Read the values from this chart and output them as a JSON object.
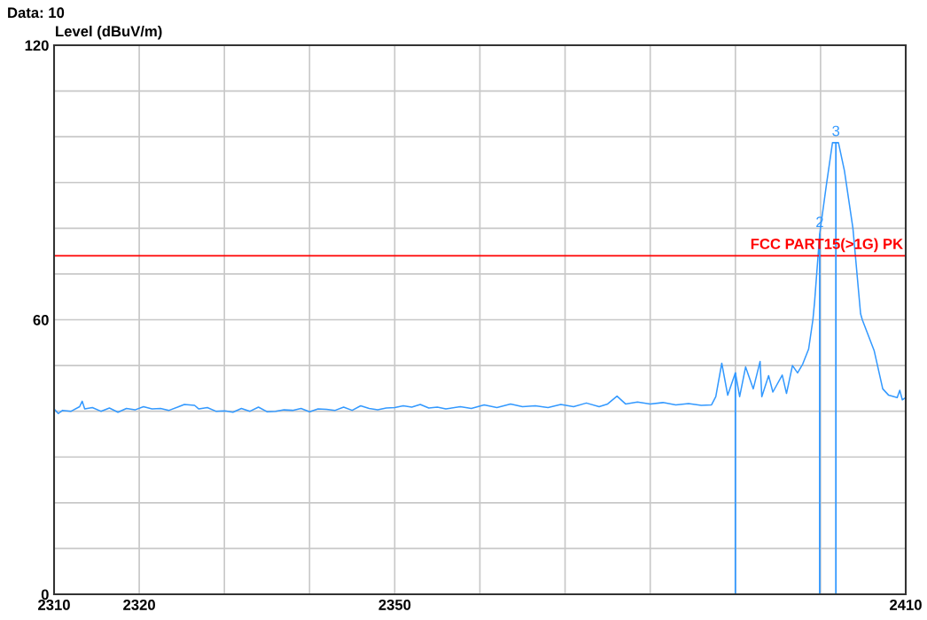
{
  "chart_data": {
    "type": "line",
    "ylabel": "Level (dBuV/m)",
    "annotations": [
      "Data: 10",
      {
        "text": "2",
        "x": 2399.9,
        "y": 78.8
      },
      {
        "text": "3",
        "x": 2401.8,
        "y": 98.7
      }
    ],
    "xlim": [
      2310,
      2410
    ],
    "ylim": [
      0,
      120
    ],
    "xticks": [
      2310,
      2320,
      {
        "value": 2330,
        "label": null
      },
      {
        "value": 2340,
        "label": null
      },
      2350,
      {
        "value": 2360,
        "label": null
      },
      {
        "value": 2370,
        "label": null
      },
      {
        "value": 2380,
        "label": null
      },
      {
        "value": 2390,
        "label": null
      },
      {
        "value": 2400,
        "label": null
      },
      2410
    ],
    "yticks": [
      0,
      {
        "value": 10,
        "label": null
      },
      {
        "value": 20,
        "label": null
      },
      {
        "value": 30,
        "label": null
      },
      {
        "value": 40,
        "label": null
      },
      {
        "value": 50,
        "label": null
      },
      60,
      {
        "value": 70,
        "label": null
      },
      {
        "value": 80,
        "label": null
      },
      {
        "value": 90,
        "label": null
      },
      {
        "value": 100,
        "label": null
      },
      {
        "value": 110,
        "label": null
      },
      120
    ],
    "grid": true,
    "series": [
      {
        "color": "#3399ff",
        "x": [
          2310,
          2310.5,
          2311,
          2312,
          2313,
          2313.3,
          2313.6,
          2314.5,
          2315.5,
          2316.5,
          2317.5,
          2318.5,
          2319.5,
          2320.5,
          2321.5,
          2322.5,
          2323.5,
          2324.5,
          2325.3,
          2326.5,
          2327,
          2328,
          2329,
          2330,
          2331,
          2332,
          2333,
          2334,
          2335,
          2336,
          2337,
          2338,
          2339,
          2340,
          2341,
          2342,
          2343,
          2344,
          2345,
          2346,
          2347,
          2348,
          2349,
          2350,
          2351,
          2352,
          2353,
          2354,
          2355,
          2356,
          2357.7,
          2359,
          2360.5,
          2362,
          2363.6,
          2365,
          2366.5,
          2368,
          2369.5,
          2371,
          2372.5,
          2374,
          2375,
          2376.1,
          2377.1,
          2378.5,
          2380,
          2381.5,
          2383,
          2384.5,
          2386,
          2387.2,
          2387.7,
          2388.4,
          2389.1,
          2390.0,
          2390.5,
          2391.2,
          2392.1,
          2392.9,
          2393.1,
          2393.9,
          2394.4,
          2395.5,
          2396.0,
          2396.7,
          2397.3,
          2397.9,
          2398.6,
          2399.1,
          2399.3,
          2399.9,
          2400.7,
          2401.4,
          2402.1,
          2402.8,
          2403.8,
          2404.7,
          2404.9,
          2406.3,
          2407.3,
          2408.0,
          2409.0,
          2409.3,
          2409.6,
          2410
        ],
        "values": [
          40.5,
          39.5,
          40.2,
          40.0,
          41.0,
          42.2,
          40.5,
          40.8,
          40.0,
          40.7,
          39.8,
          40.6,
          40.3,
          41.0,
          40.5,
          40.6,
          40.2,
          40.9,
          41.5,
          41.3,
          40.5,
          40.8,
          40.0,
          40.1,
          39.8,
          40.6,
          40.0,
          40.9,
          39.9,
          40.0,
          40.3,
          40.2,
          40.6,
          39.9,
          40.5,
          40.4,
          40.2,
          40.9,
          40.2,
          41.2,
          40.6,
          40.3,
          40.7,
          40.8,
          41.2,
          40.9,
          41.5,
          40.7,
          40.9,
          40.5,
          41.0,
          40.6,
          41.4,
          40.8,
          41.6,
          41.0,
          41.2,
          40.8,
          41.5,
          41.0,
          41.8,
          41.0,
          41.6,
          43.3,
          41.6,
          42.0,
          41.6,
          41.9,
          41.4,
          41.7,
          41.3,
          41.4,
          43.2,
          50.5,
          43.5,
          48.4,
          43.2,
          49.7,
          44.9,
          50.9,
          43.2,
          47.8,
          44.2,
          47.9,
          43.9,
          50.0,
          48.4,
          50.3,
          53.6,
          60.0,
          63.9,
          78.8,
          89.7,
          98.7,
          98.7,
          92.6,
          80.0,
          61.3,
          60.0,
          53.2,
          44.9,
          43.5,
          43.0,
          44.6,
          42.5,
          43.0
        ]
      }
    ],
    "ref_lines": [
      {
        "axis": "y",
        "value": 74,
        "label": "FCC PART15(>1G) PK",
        "color": "#ff0000"
      },
      {
        "axis": "x",
        "value": 2390.0,
        "label": null,
        "color": "#3399ff"
      },
      {
        "axis": "x",
        "value": 2399.9,
        "label": null,
        "color": "#3399ff"
      },
      {
        "axis": "x",
        "value": 2401.8,
        "label": null,
        "color": "#3399ff"
      }
    ]
  }
}
